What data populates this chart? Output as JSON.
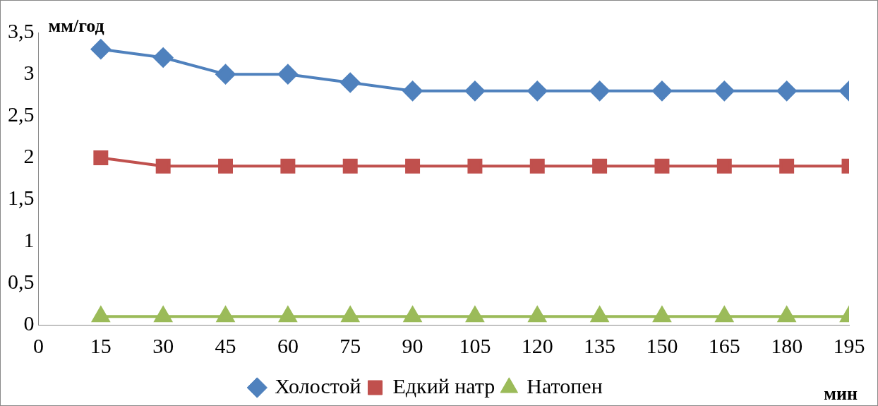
{
  "chart_data": {
    "type": "line",
    "ylabel": "мм/год",
    "xlabel": "мин",
    "x": [
      15,
      30,
      45,
      60,
      75,
      90,
      105,
      120,
      135,
      150,
      165,
      180,
      195
    ],
    "xlim": [
      0,
      195
    ],
    "xticks": [
      0,
      15,
      30,
      45,
      60,
      75,
      90,
      105,
      120,
      135,
      150,
      165,
      180,
      195
    ],
    "ylim": [
      0,
      3.5
    ],
    "yticks": [
      0,
      {
        "value": 0.5,
        "label": "0,5"
      },
      1,
      {
        "value": 1.5,
        "label": "1,5"
      },
      2,
      {
        "value": 2.5,
        "label": "2,5"
      },
      3,
      {
        "value": 3.5,
        "label": "3,5"
      }
    ],
    "grid": false,
    "legend": "bottom",
    "line_style": "solid",
    "series": [
      {
        "name": "Холостой",
        "color": "#4f81bd",
        "marker": "diamond",
        "values": [
          3.3,
          3.2,
          3.0,
          3.0,
          2.9,
          2.8,
          2.8,
          2.8,
          2.8,
          2.8,
          2.8,
          2.8,
          2.8
        ]
      },
      {
        "name": "Едкий натр",
        "color": "#c0504d",
        "marker": "square",
        "values": [
          2.0,
          1.9,
          1.9,
          1.9,
          1.9,
          1.9,
          1.9,
          1.9,
          1.9,
          1.9,
          1.9,
          1.9,
          1.9
        ]
      },
      {
        "name": "Натопен",
        "color": "#9bbb59",
        "marker": "triangle",
        "values": [
          0.1,
          0.1,
          0.1,
          0.1,
          0.1,
          0.1,
          0.1,
          0.1,
          0.1,
          0.1,
          0.1,
          0.1,
          0.1
        ]
      }
    ]
  }
}
